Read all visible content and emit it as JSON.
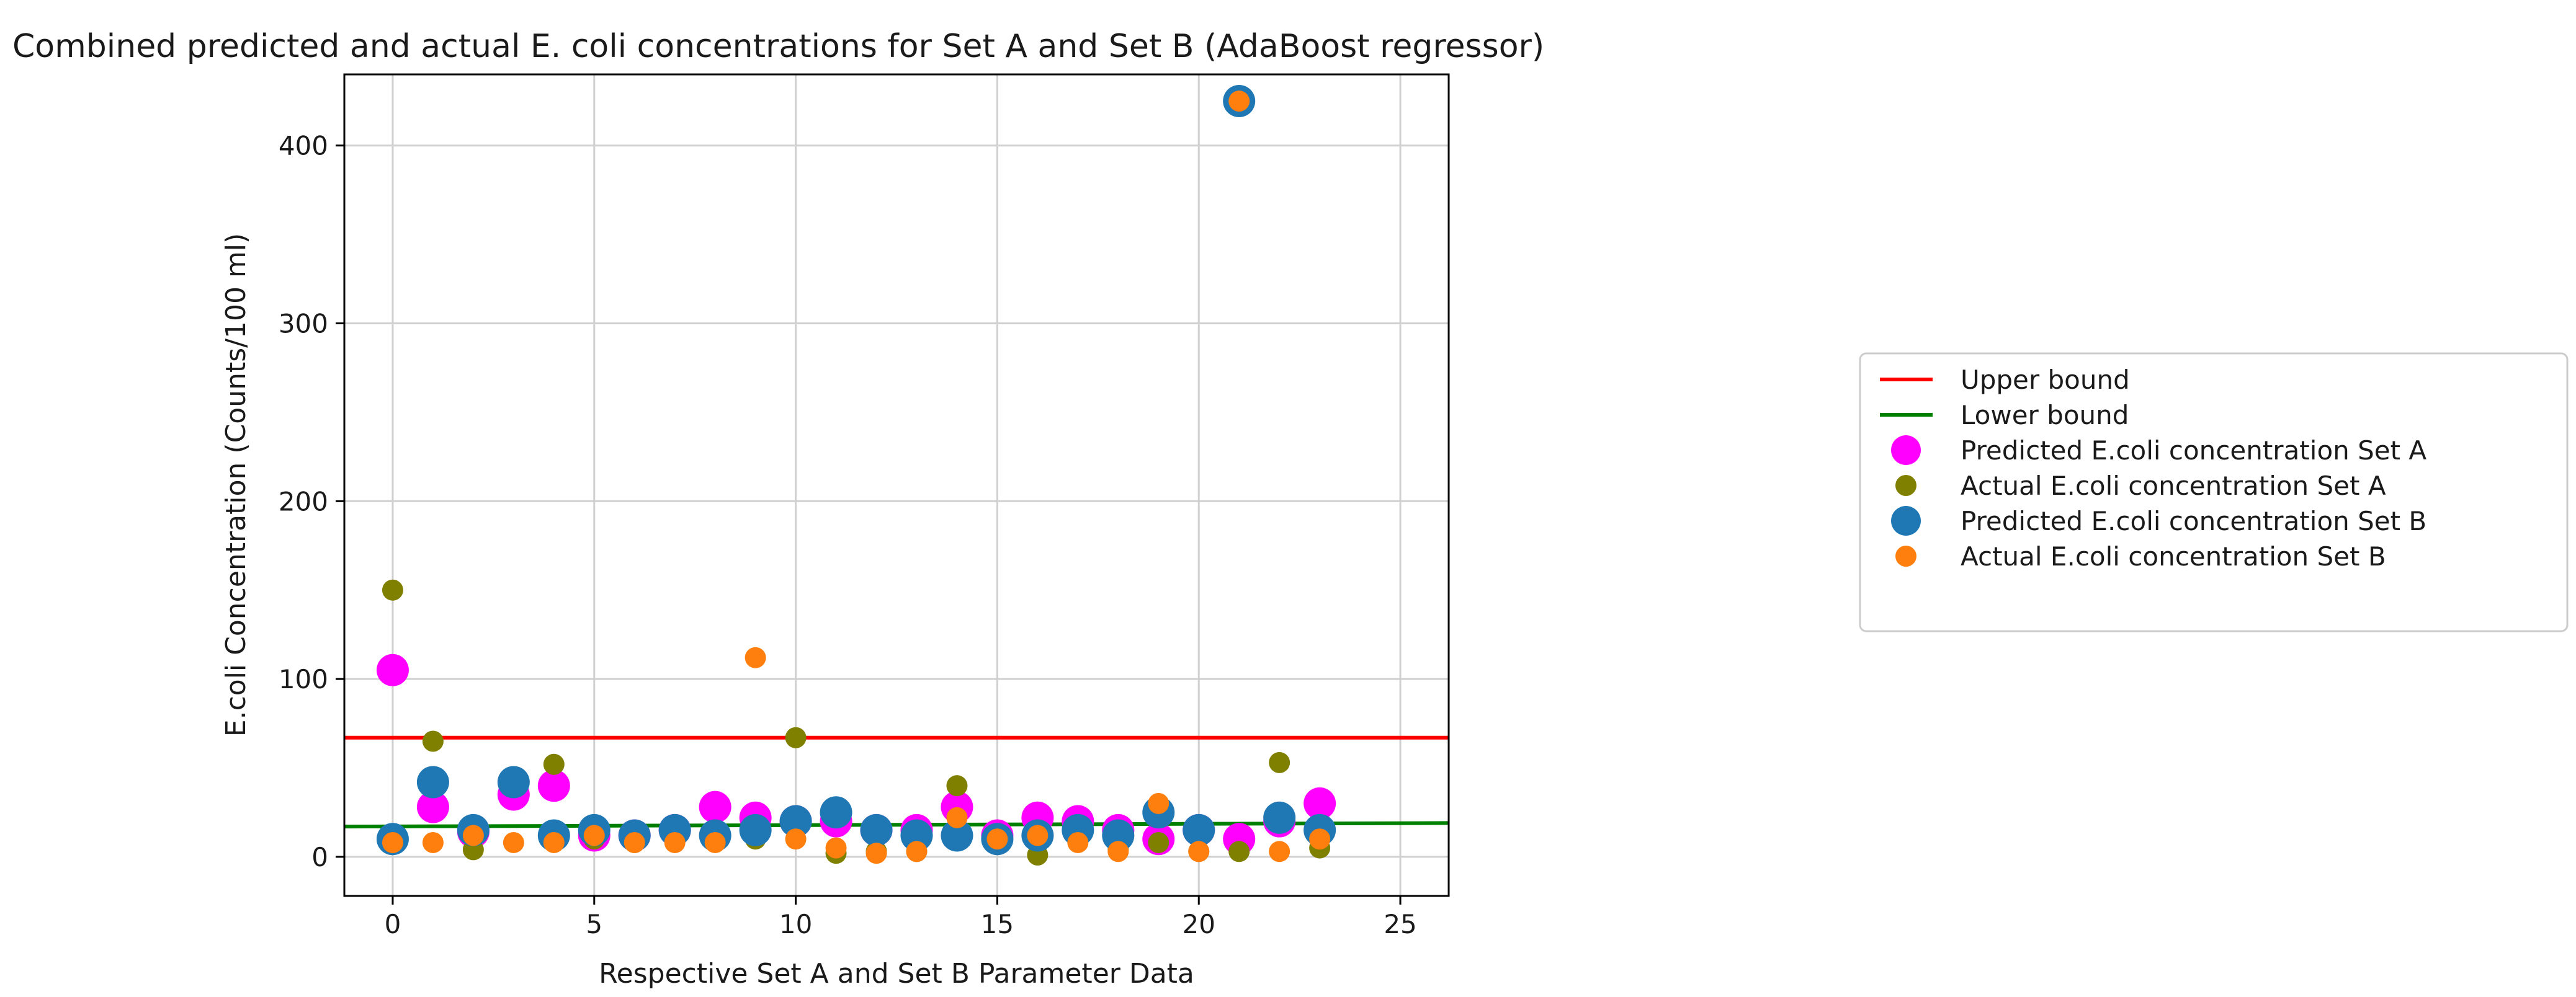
{
  "chart_data": {
    "type": "scatter",
    "title": "Combined predicted and actual E. coli concentrations for Set A and Set B (AdaBoost regressor)",
    "xlabel": "Respective Set A and Set B Parameter Data",
    "ylabel": "E.coli Concentration (Counts/100 ml)",
    "xlim": [
      -1.2,
      26.2
    ],
    "ylim": [
      -22,
      440
    ],
    "xticks": [
      0,
      5,
      10,
      15,
      20,
      25
    ],
    "yticks": [
      0,
      100,
      200,
      300,
      400
    ],
    "grid": true,
    "legend_position": "right, outside the plot",
    "lines": [
      {
        "name": "Upper bound",
        "color": "#ff0000",
        "x": [
          -1.2,
          26.2
        ],
        "y": [
          67,
          67
        ]
      },
      {
        "name": "Lower bound",
        "color": "#008000",
        "x": [
          -1.2,
          26.2
        ],
        "y": [
          17,
          19
        ]
      }
    ],
    "series": [
      {
        "name": "Predicted E.coli concentration Set A",
        "color": "#ff00ff",
        "marker_size": "large",
        "x": [
          0,
          1,
          2,
          3,
          4,
          5,
          6,
          7,
          8,
          9,
          10,
          11,
          12,
          13,
          14,
          15,
          16,
          17,
          18,
          19,
          20,
          21,
          22,
          23
        ],
        "y": [
          105,
          28,
          14,
          35,
          40,
          12,
          12,
          15,
          28,
          22,
          20,
          20,
          15,
          15,
          28,
          12,
          22,
          20,
          15,
          10,
          15,
          10,
          20,
          30
        ]
      },
      {
        "name": "Actual E.coli concentration Set A",
        "color": "#808000",
        "marker_size": "small",
        "x": [
          0,
          1,
          2,
          3,
          4,
          5,
          6,
          7,
          8,
          9,
          10,
          11,
          12,
          13,
          14,
          15,
          16,
          17,
          18,
          19,
          20,
          21,
          22,
          23
        ],
        "y": [
          150,
          65,
          4,
          45,
          52,
          10,
          8,
          10,
          10,
          10,
          67,
          2,
          3,
          3,
          40,
          8,
          1,
          10,
          4,
          8,
          3,
          3,
          53,
          5
        ]
      },
      {
        "name": "Predicted E.coli concentration Set B",
        "color": "#1f77b4",
        "marker_size": "large",
        "x": [
          0,
          1,
          2,
          3,
          4,
          5,
          6,
          7,
          8,
          9,
          10,
          11,
          12,
          13,
          14,
          15,
          16,
          17,
          18,
          19,
          20,
          21,
          22,
          23
        ],
        "y": [
          10,
          42,
          15,
          42,
          12,
          15,
          12,
          15,
          12,
          15,
          20,
          25,
          15,
          12,
          12,
          10,
          12,
          15,
          12,
          25,
          15,
          425,
          22,
          15
        ]
      },
      {
        "name": "Actual E.coli concentration Set B",
        "color": "#ff7f0e",
        "marker_size": "small",
        "x": [
          0,
          1,
          2,
          3,
          4,
          5,
          6,
          7,
          8,
          9,
          10,
          11,
          12,
          13,
          14,
          15,
          16,
          17,
          18,
          19,
          20,
          21,
          22,
          23
        ],
        "y": [
          8,
          8,
          12,
          8,
          8,
          12,
          8,
          8,
          8,
          112,
          10,
          5,
          2,
          3,
          22,
          10,
          12,
          8,
          3,
          30,
          3,
          425,
          3,
          10
        ]
      }
    ]
  }
}
